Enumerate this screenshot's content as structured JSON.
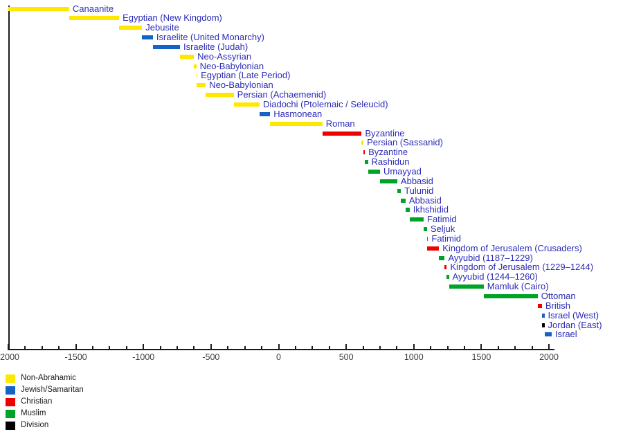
{
  "chart_data": {
    "type": "bar",
    "variant": "horizontal-timeline",
    "title": "",
    "xlabel": "",
    "ylabel": "",
    "grid": false,
    "x_axis": {
      "min": -2000,
      "max": 2000,
      "major_ticks": [
        -2000,
        -1500,
        -1000,
        -500,
        0,
        500,
        1000,
        1500,
        2000
      ],
      "tick_labels": [
        "-2000",
        "-1500",
        "-1000",
        "-500",
        "0",
        "500",
        "1000",
        "1500",
        "2000"
      ],
      "minor_tick_interval": 125
    },
    "legend": {
      "position": "bottom-left",
      "entries": [
        {
          "key": "non_abrahamic",
          "label": "Non-Abrahamic",
          "color": "#FFE800"
        },
        {
          "key": "jewish_samaritan",
          "label": "Jewish/Samaritan",
          "color": "#1464C8"
        },
        {
          "key": "christian",
          "label": "Christian",
          "color": "#EE0000"
        },
        {
          "key": "muslim",
          "label": "Muslim",
          "color": "#00A227"
        },
        {
          "key": "division",
          "label": "Division",
          "color": "#000000"
        }
      ]
    },
    "periods": [
      {
        "label": "Canaanite",
        "start": -2000,
        "end": -1550,
        "category": "non_abrahamic"
      },
      {
        "label": "Egyptian (New Kingdom)",
        "start": -1550,
        "end": -1180,
        "category": "non_abrahamic"
      },
      {
        "label": "Jebusite",
        "start": -1180,
        "end": -1010,
        "category": "non_abrahamic"
      },
      {
        "label": "Israelite (United Monarchy)",
        "start": -1010,
        "end": -930,
        "category": "jewish_samaritan"
      },
      {
        "label": "Israelite (Judah)",
        "start": -930,
        "end": -730,
        "category": "jewish_samaritan"
      },
      {
        "label": "Neo-Assyrian",
        "start": -730,
        "end": -627,
        "category": "non_abrahamic"
      },
      {
        "label": "Neo-Babylonian",
        "start": -627,
        "end": -609,
        "category": "non_abrahamic"
      },
      {
        "label": "Egyptian (Late Period)",
        "start": -609,
        "end": -605,
        "category": "non_abrahamic"
      },
      {
        "label": "Neo-Babylonian",
        "start": -605,
        "end": -539,
        "category": "non_abrahamic"
      },
      {
        "label": "Persian (Achaemenid)",
        "start": -539,
        "end": -332,
        "category": "non_abrahamic"
      },
      {
        "label": "Diadochi (Ptolemaic / Seleucid)",
        "start": -332,
        "end": -141,
        "category": "non_abrahamic"
      },
      {
        "label": "Hasmonean",
        "start": -141,
        "end": -63,
        "category": "jewish_samaritan"
      },
      {
        "label": "Roman",
        "start": -63,
        "end": 324,
        "category": "non_abrahamic"
      },
      {
        "label": "Byzantine",
        "start": 324,
        "end": 614,
        "category": "christian"
      },
      {
        "label": "Persian (Sassanid)",
        "start": 614,
        "end": 628,
        "category": "non_abrahamic"
      },
      {
        "label": "Byzantine",
        "start": 628,
        "end": 638,
        "category": "christian"
      },
      {
        "label": "Rashidun",
        "start": 638,
        "end": 661,
        "category": "muslim"
      },
      {
        "label": "Umayyad",
        "start": 661,
        "end": 750,
        "category": "muslim"
      },
      {
        "label": "Abbasid",
        "start": 750,
        "end": 878,
        "category": "muslim"
      },
      {
        "label": "Tulunid",
        "start": 878,
        "end": 905,
        "category": "muslim"
      },
      {
        "label": "Abbasid",
        "start": 905,
        "end": 939,
        "category": "muslim"
      },
      {
        "label": "Ikhshidid",
        "start": 939,
        "end": 969,
        "category": "muslim"
      },
      {
        "label": "Fatimid",
        "start": 969,
        "end": 1073,
        "category": "muslim"
      },
      {
        "label": "Seljuk",
        "start": 1073,
        "end": 1098,
        "category": "muslim"
      },
      {
        "label": "Fatimid",
        "start": 1098,
        "end": 1099,
        "category": "muslim"
      },
      {
        "label": "Kingdom of Jerusalem (Crusaders)",
        "start": 1099,
        "end": 1187,
        "category": "christian"
      },
      {
        "label": "Ayyubid (1187–1229)",
        "start": 1187,
        "end": 1229,
        "category": "muslim"
      },
      {
        "label": "Kingdom of Jerusalem (1229–1244)",
        "start": 1229,
        "end": 1244,
        "category": "christian"
      },
      {
        "label": "Ayyubid (1244–1260)",
        "start": 1244,
        "end": 1260,
        "category": "muslim"
      },
      {
        "label": "Mamluk (Cairo)",
        "start": 1260,
        "end": 1517,
        "category": "muslim"
      },
      {
        "label": "Ottoman",
        "start": 1517,
        "end": 1917,
        "category": "muslim"
      },
      {
        "label": "British",
        "start": 1917,
        "end": 1948,
        "category": "christian"
      },
      {
        "label": "Israel (West)",
        "start": 1948,
        "end": 1967,
        "category": "jewish_samaritan"
      },
      {
        "label": "Jordan (East)",
        "start": 1948,
        "end": 1967,
        "category": "division"
      },
      {
        "label": "Israel",
        "start": 1967,
        "end": 2020,
        "category": "jewish_samaritan"
      }
    ]
  }
}
